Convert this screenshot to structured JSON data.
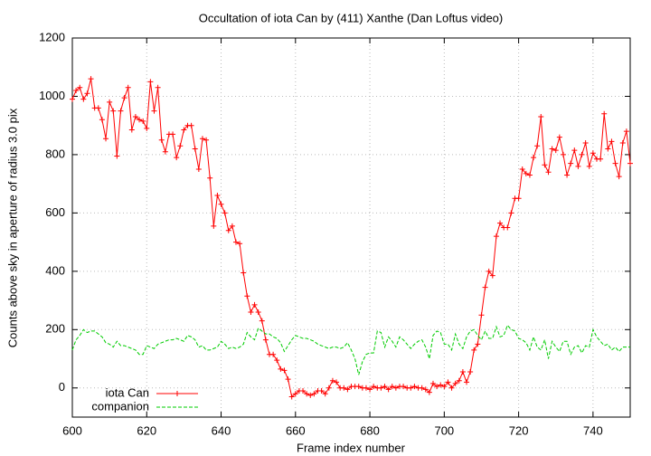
{
  "chart_data": {
    "type": "line",
    "title": "Occultation of iota Can by (411) Xanthe (Dan Loftus video)",
    "x_label": "Frame index number",
    "y_label": "Counts above sky in aperture of radius 3.0 pix",
    "xlim": [
      600,
      750
    ],
    "xticks": [
      600,
      620,
      640,
      660,
      680,
      700,
      720,
      740
    ],
    "ylim": [
      -100,
      1200
    ],
    "yticks": [
      0,
      200,
      400,
      600,
      800,
      1000,
      1200
    ],
    "grid": true,
    "legend": "lower left",
    "x": [
      600,
      601,
      602,
      603,
      604,
      605,
      606,
      607,
      608,
      609,
      610,
      611,
      612,
      613,
      614,
      615,
      616,
      617,
      618,
      619,
      620,
      621,
      622,
      623,
      624,
      625,
      626,
      627,
      628,
      629,
      630,
      631,
      632,
      633,
      634,
      635,
      636,
      637,
      638,
      639,
      640,
      641,
      642,
      643,
      644,
      645,
      646,
      647,
      648,
      649,
      650,
      651,
      652,
      653,
      654,
      655,
      656,
      657,
      658,
      659,
      660,
      661,
      662,
      663,
      664,
      665,
      666,
      667,
      668,
      669,
      670,
      671,
      672,
      673,
      674,
      675,
      676,
      677,
      678,
      679,
      680,
      681,
      682,
      683,
      684,
      685,
      686,
      687,
      688,
      689,
      690,
      691,
      692,
      693,
      694,
      695,
      696,
      697,
      698,
      699,
      700,
      701,
      702,
      703,
      704,
      705,
      706,
      707,
      708,
      709,
      710,
      711,
      712,
      713,
      714,
      715,
      716,
      717,
      718,
      719,
      720,
      721,
      722,
      723,
      724,
      725,
      726,
      727,
      728,
      729,
      730,
      731,
      732,
      733,
      734,
      735,
      736,
      737,
      738,
      739,
      740,
      741,
      742,
      743,
      744,
      745,
      746,
      747,
      748,
      749,
      750
    ],
    "series": [
      {
        "name": "iota Can",
        "color": "#ff0000",
        "marker": "plus",
        "values": [
          990,
          1020,
          1030,
          990,
          1010,
          1060,
          960,
          960,
          920,
          855,
          980,
          950,
          795,
          950,
          995,
          1030,
          885,
          930,
          920,
          915,
          890,
          1050,
          950,
          1030,
          850,
          810,
          870,
          870,
          790,
          830,
          885,
          900,
          900,
          820,
          750,
          855,
          850,
          720,
          555,
          660,
          630,
          600,
          540,
          555,
          500,
          495,
          395,
          315,
          260,
          285,
          260,
          230,
          165,
          115,
          115,
          95,
          65,
          60,
          30,
          -30,
          -20,
          -10,
          -10,
          -20,
          -25,
          -20,
          -10,
          -10,
          -20,
          0,
          25,
          20,
          0,
          0,
          -5,
          5,
          5,
          5,
          0,
          0,
          -5,
          5,
          0,
          0,
          5,
          -5,
          5,
          0,
          5,
          5,
          0,
          0,
          5,
          0,
          0,
          -5,
          -15,
          15,
          5,
          10,
          5,
          20,
          0,
          15,
          25,
          55,
          20,
          55,
          130,
          150,
          250,
          345,
          400,
          385,
          520,
          565,
          550,
          550,
          600,
          650,
          650,
          750,
          735,
          730,
          790,
          830,
          930,
          765,
          740,
          820,
          815,
          860,
          800,
          730,
          770,
          815,
          760,
          800,
          840,
          760,
          805,
          785,
          785,
          940,
          820,
          845,
          770,
          725,
          840,
          880,
          770
        ]
      },
      {
        "name": "companion",
        "color": "#00cc00",
        "dashed": true,
        "values": [
          130,
          165,
          180,
          200,
          190,
          195,
          195,
          185,
          175,
          155,
          150,
          140,
          160,
          145,
          145,
          140,
          135,
          130,
          115,
          115,
          145,
          140,
          135,
          150,
          155,
          160,
          165,
          165,
          170,
          165,
          160,
          180,
          175,
          165,
          140,
          145,
          130,
          130,
          135,
          140,
          160,
          150,
          135,
          140,
          135,
          140,
          150,
          190,
          175,
          165,
          205,
          195,
          185,
          185,
          175,
          170,
          155,
          125,
          145,
          165,
          180,
          175,
          170,
          170,
          165,
          160,
          150,
          145,
          140,
          135,
          140,
          140,
          135,
          140,
          155,
          130,
          100,
          45,
          90,
          115,
          120,
          120,
          195,
          190,
          140,
          175,
          160,
          140,
          175,
          165,
          150,
          135,
          150,
          160,
          165,
          140,
          100,
          180,
          195,
          190,
          150,
          150,
          130,
          185,
          150,
          135,
          175,
          195,
          200,
          180,
          165,
          195,
          170,
          170,
          210,
          175,
          180,
          215,
          200,
          195,
          170,
          165,
          155,
          130,
          175,
          140,
          130,
          165,
          100,
          160,
          140,
          125,
          160,
          160,
          115,
          140,
          145,
          120,
          145,
          140,
          200,
          175,
          160,
          145,
          150,
          130,
          140,
          125,
          140,
          140,
          140
        ]
      }
    ]
  }
}
